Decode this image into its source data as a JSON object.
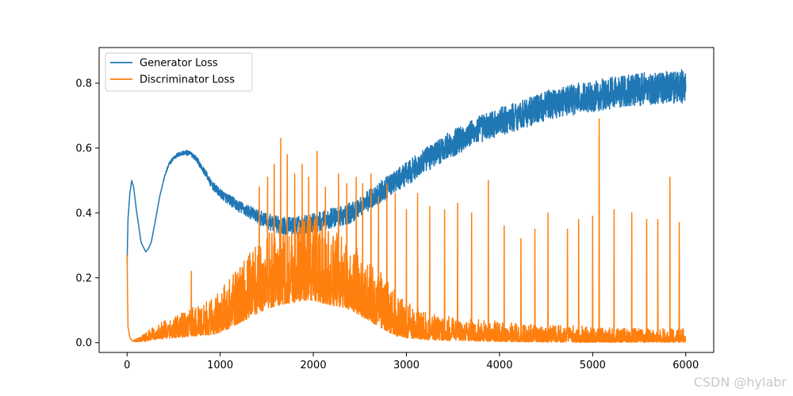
{
  "chart_data": {
    "type": "line",
    "title": "",
    "xlabel": "",
    "ylabel": "",
    "xlim": [
      -300,
      6300
    ],
    "ylim": [
      -0.03,
      0.91
    ],
    "xticks": [
      0,
      1000,
      2000,
      3000,
      4000,
      5000,
      6000
    ],
    "xtick_labels": [
      "0",
      "1000",
      "2000",
      "3000",
      "4000",
      "5000",
      "6000"
    ],
    "yticks": [
      0.0,
      0.2,
      0.4,
      0.6,
      0.8
    ],
    "ytick_labels": [
      "0.0",
      "0.2",
      "0.4",
      "0.6",
      "0.8"
    ],
    "grid": false,
    "legend": "top-left",
    "series": [
      {
        "name": "Generator Loss",
        "color": "#1f77b4",
        "x": [
          0,
          10,
          30,
          50,
          70,
          100,
          150,
          200,
          230,
          260,
          300,
          350,
          400,
          450,
          500,
          550,
          600,
          650,
          700,
          750,
          800,
          850,
          900,
          1000,
          1100,
          1200,
          1300,
          1400,
          1500,
          1600,
          1700,
          1800,
          1900,
          2000,
          2100,
          2200,
          2300,
          2400,
          2500,
          2600,
          2700,
          2800,
          2900,
          3000,
          3100,
          3200,
          3300,
          3400,
          3500,
          3600,
          3700,
          3800,
          3900,
          4000,
          4100,
          4200,
          4300,
          4400,
          4500,
          4600,
          4700,
          4800,
          4900,
          5000,
          5100,
          5200,
          5300,
          5400,
          5500,
          5600,
          5700,
          5800,
          5900,
          6000
        ],
        "values": [
          0.24,
          0.38,
          0.46,
          0.5,
          0.48,
          0.41,
          0.31,
          0.28,
          0.29,
          0.31,
          0.37,
          0.45,
          0.51,
          0.55,
          0.57,
          0.58,
          0.585,
          0.585,
          0.58,
          0.565,
          0.54,
          0.52,
          0.49,
          0.46,
          0.44,
          0.42,
          0.405,
          0.39,
          0.375,
          0.365,
          0.36,
          0.36,
          0.365,
          0.37,
          0.375,
          0.385,
          0.39,
          0.4,
          0.42,
          0.44,
          0.46,
          0.48,
          0.5,
          0.52,
          0.54,
          0.56,
          0.58,
          0.6,
          0.615,
          0.63,
          0.645,
          0.66,
          0.67,
          0.68,
          0.69,
          0.7,
          0.71,
          0.72,
          0.73,
          0.74,
          0.745,
          0.75,
          0.755,
          0.76,
          0.765,
          0.77,
          0.775,
          0.78,
          0.78,
          0.785,
          0.785,
          0.79,
          0.79,
          0.79
        ],
        "noise": [
          0.0,
          0.0,
          0.0,
          0.0,
          0.0,
          0.0,
          0.0,
          0.0,
          0.0,
          0.0,
          0.0,
          0.0,
          0.003,
          0.005,
          0.006,
          0.007,
          0.007,
          0.008,
          0.008,
          0.008,
          0.009,
          0.01,
          0.012,
          0.014,
          0.016,
          0.018,
          0.02,
          0.022,
          0.024,
          0.026,
          0.027,
          0.028,
          0.029,
          0.03,
          0.03,
          0.031,
          0.031,
          0.032,
          0.032,
          0.033,
          0.033,
          0.034,
          0.035,
          0.036,
          0.037,
          0.038,
          0.039,
          0.04,
          0.041,
          0.042,
          0.042,
          0.043,
          0.043,
          0.044,
          0.044,
          0.045,
          0.045,
          0.046,
          0.046,
          0.047,
          0.047,
          0.048,
          0.048,
          0.048,
          0.049,
          0.049,
          0.05,
          0.05,
          0.05,
          0.051,
          0.051,
          0.052,
          0.052,
          0.052
        ]
      },
      {
        "name": "Discriminator Loss",
        "color": "#ff7f0e",
        "x": [
          0,
          10,
          30,
          60,
          100,
          200,
          300,
          400,
          500,
          600,
          700,
          800,
          900,
          1000,
          1100,
          1200,
          1300,
          1400,
          1500,
          1600,
          1700,
          1800,
          1900,
          2000,
          2100,
          2200,
          2300,
          2400,
          2500,
          2600,
          2700,
          2800,
          2900,
          3000,
          3200,
          3400,
          3600,
          3800,
          4000,
          4200,
          4400,
          4600,
          4800,
          5000,
          5200,
          5400,
          5600,
          5800,
          6000
        ],
        "values": [
          0.27,
          0.05,
          0.015,
          0.005,
          0.005,
          0.01,
          0.02,
          0.025,
          0.03,
          0.035,
          0.04,
          0.045,
          0.05,
          0.06,
          0.08,
          0.1,
          0.12,
          0.14,
          0.16,
          0.17,
          0.18,
          0.185,
          0.19,
          0.19,
          0.18,
          0.17,
          0.16,
          0.15,
          0.13,
          0.11,
          0.09,
          0.07,
          0.05,
          0.04,
          0.03,
          0.025,
          0.022,
          0.02,
          0.018,
          0.016,
          0.015,
          0.014,
          0.013,
          0.012,
          0.012,
          0.011,
          0.011,
          0.01,
          0.01
        ],
        "noise": [
          0.0,
          0.0,
          0.0,
          0.0,
          0.005,
          0.012,
          0.02,
          0.025,
          0.03,
          0.035,
          0.04,
          0.045,
          0.05,
          0.06,
          0.07,
          0.08,
          0.09,
          0.1,
          0.11,
          0.115,
          0.12,
          0.12,
          0.12,
          0.12,
          0.115,
          0.11,
          0.1,
          0.095,
          0.09,
          0.085,
          0.08,
          0.07,
          0.06,
          0.05,
          0.04,
          0.035,
          0.03,
          0.03,
          0.028,
          0.026,
          0.025,
          0.024,
          0.023,
          0.022,
          0.021,
          0.02,
          0.02,
          0.02,
          0.02
        ],
        "spikes": [
          [
            690,
            0.22
          ],
          [
            1420,
            0.48
          ],
          [
            1510,
            0.51
          ],
          [
            1580,
            0.55
          ],
          [
            1650,
            0.63
          ],
          [
            1720,
            0.58
          ],
          [
            1800,
            0.52
          ],
          [
            1880,
            0.55
          ],
          [
            1950,
            0.51
          ],
          [
            2040,
            0.59
          ],
          [
            2130,
            0.48
          ],
          [
            2270,
            0.52
          ],
          [
            2360,
            0.49
          ],
          [
            2460,
            0.51
          ],
          [
            2530,
            0.49
          ],
          [
            2620,
            0.52
          ],
          [
            2700,
            0.45
          ],
          [
            2790,
            0.49
          ],
          [
            2880,
            0.46
          ],
          [
            3000,
            0.41
          ],
          [
            3120,
            0.46
          ],
          [
            3250,
            0.42
          ],
          [
            3410,
            0.41
          ],
          [
            3550,
            0.43
          ],
          [
            3700,
            0.4
          ],
          [
            3880,
            0.5
          ],
          [
            4050,
            0.36
          ],
          [
            4230,
            0.32
          ],
          [
            4380,
            0.35
          ],
          [
            4520,
            0.4
          ],
          [
            4730,
            0.35
          ],
          [
            4850,
            0.38
          ],
          [
            5000,
            0.39
          ],
          [
            5070,
            0.69
          ],
          [
            5230,
            0.41
          ],
          [
            5420,
            0.4
          ],
          [
            5580,
            0.38
          ],
          [
            5700,
            0.38
          ],
          [
            5830,
            0.51
          ],
          [
            5930,
            0.37
          ]
        ]
      }
    ]
  },
  "watermark": "CSDN @hylabr"
}
